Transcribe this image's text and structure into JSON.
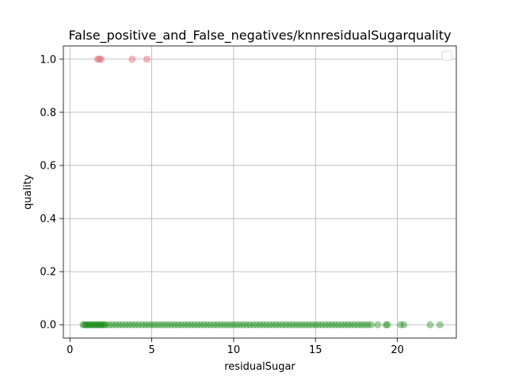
{
  "chart_data": {
    "type": "scatter",
    "title": "False_positive_and_False_negatives/knnresidualSugarquality",
    "xlabel": "residualSugar",
    "ylabel": "quality",
    "xlim": [
      -0.4,
      23.6
    ],
    "ylim": [
      -0.05,
      1.05
    ],
    "x_ticks": [
      0,
      5,
      10,
      15,
      20
    ],
    "y_ticks": [
      0.0,
      0.2,
      0.4,
      0.6,
      0.8,
      1.0
    ],
    "x_tick_labels": [
      "0",
      "5",
      "10",
      "15",
      "20"
    ],
    "y_tick_labels": [
      "0.0",
      "0.2",
      "0.4",
      "0.6",
      "0.8",
      "1.0"
    ],
    "grid": true,
    "legend": {
      "placement": "upper right",
      "entries": []
    },
    "series": [
      {
        "color": "#e8707a",
        "alpha": 0.5,
        "x": [
          1.7,
          1.8,
          1.9,
          3.8,
          4.7
        ],
        "y": [
          1,
          1,
          1,
          1,
          1
        ]
      },
      {
        "color": "#008000",
        "alpha": 0.35,
        "x": [
          0.8,
          0.9,
          1.0,
          1.1,
          1.2,
          1.3,
          1.4,
          1.5,
          1.6,
          1.7,
          1.8,
          1.9,
          2.0,
          2.1,
          2.2,
          2.4,
          2.6,
          2.8,
          3.0,
          3.2,
          3.4,
          3.6,
          3.8,
          4.0,
          4.2,
          4.4,
          4.6,
          4.8,
          5.0,
          5.2,
          5.4,
          5.6,
          5.8,
          6.0,
          6.2,
          6.4,
          6.6,
          6.8,
          7.0,
          7.2,
          7.4,
          7.6,
          7.8,
          8.0,
          8.2,
          8.4,
          8.6,
          8.8,
          9.0,
          9.2,
          9.4,
          9.6,
          9.8,
          10.0,
          10.2,
          10.4,
          10.6,
          10.8,
          11.0,
          11.2,
          11.4,
          11.6,
          11.8,
          12.0,
          12.2,
          12.4,
          12.6,
          12.8,
          13.0,
          13.2,
          13.4,
          13.6,
          13.8,
          14.0,
          14.2,
          14.4,
          14.6,
          14.8,
          15.0,
          15.2,
          15.4,
          15.6,
          15.8,
          16.0,
          16.2,
          16.4,
          16.6,
          16.8,
          17.0,
          17.2,
          17.4,
          17.6,
          17.8,
          18.0,
          18.2,
          18.4,
          18.8,
          19.3,
          19.4,
          20.2,
          20.4,
          22.0,
          22.6
        ],
        "y": [
          0,
          0,
          0,
          0,
          0,
          0,
          0,
          0,
          0,
          0,
          0,
          0,
          0,
          0,
          0,
          0,
          0,
          0,
          0,
          0,
          0,
          0,
          0,
          0,
          0,
          0,
          0,
          0,
          0,
          0,
          0,
          0,
          0,
          0,
          0,
          0,
          0,
          0,
          0,
          0,
          0,
          0,
          0,
          0,
          0,
          0,
          0,
          0,
          0,
          0,
          0,
          0,
          0,
          0,
          0,
          0,
          0,
          0,
          0,
          0,
          0,
          0,
          0,
          0,
          0,
          0,
          0,
          0,
          0,
          0,
          0,
          0,
          0,
          0,
          0,
          0,
          0,
          0,
          0,
          0,
          0,
          0,
          0,
          0,
          0,
          0,
          0,
          0,
          0,
          0,
          0,
          0,
          0,
          0,
          0,
          0,
          0,
          0,
          0,
          0,
          0,
          0,
          0
        ]
      }
    ]
  }
}
